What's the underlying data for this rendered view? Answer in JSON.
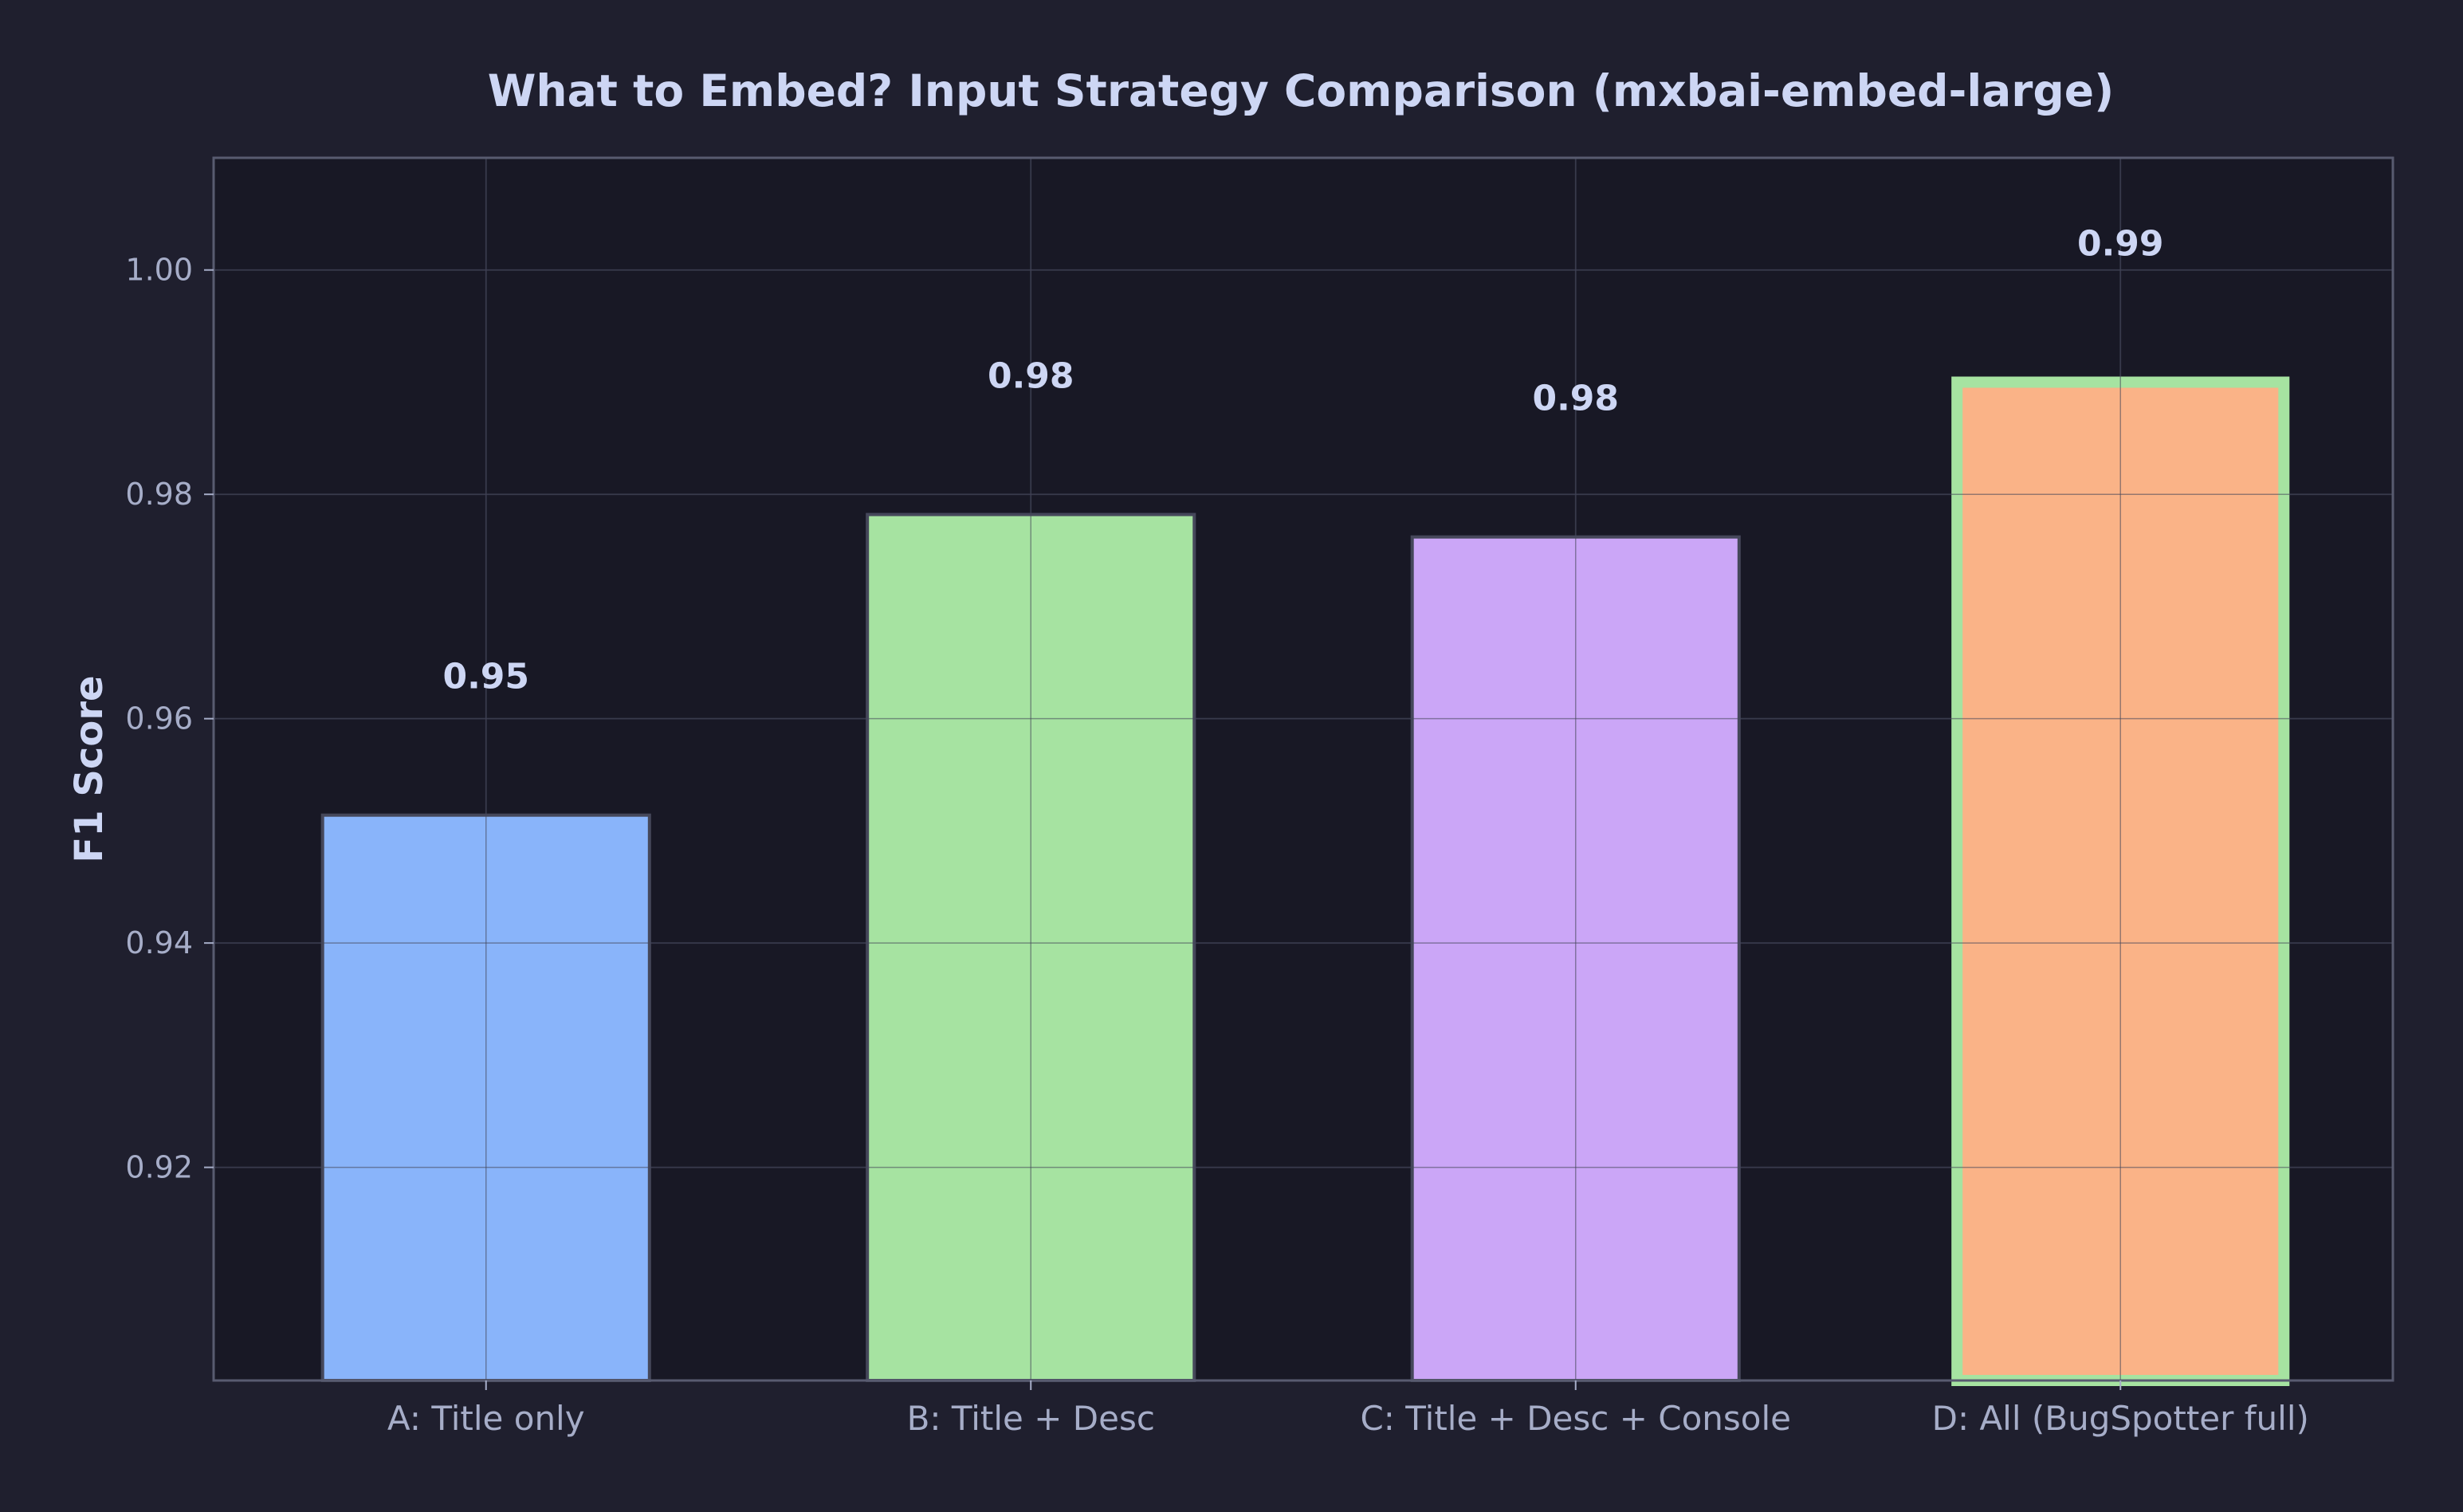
{
  "chart_data": {
    "type": "bar",
    "title": "What to Embed? Input Strategy Comparison (mxbai-embed-large)",
    "xlabel": "",
    "ylabel": "F1 Score",
    "categories": [
      "A: Title only",
      "B: Title + Desc",
      "C: Title + Desc + Console",
      "D: All (BugSpotter full)"
    ],
    "values": [
      0.9514,
      0.9782,
      0.9762,
      0.99
    ],
    "data_labels": [
      "0.95",
      "0.98",
      "0.98",
      "0.99"
    ],
    "ylim": [
      0.901,
      1.01
    ],
    "yticks": [
      0.92,
      0.94,
      0.96,
      0.98,
      1.0
    ],
    "ytick_labels": [
      "0.92",
      "0.94",
      "0.96",
      "0.98",
      "1.00"
    ],
    "colors": [
      "#89b4fa",
      "#a6e3a1",
      "#cba6f7",
      "#fab387"
    ],
    "highlight": {
      "index": 3,
      "border_color": "#a6e3a1"
    },
    "grid": true,
    "legend": "none"
  }
}
